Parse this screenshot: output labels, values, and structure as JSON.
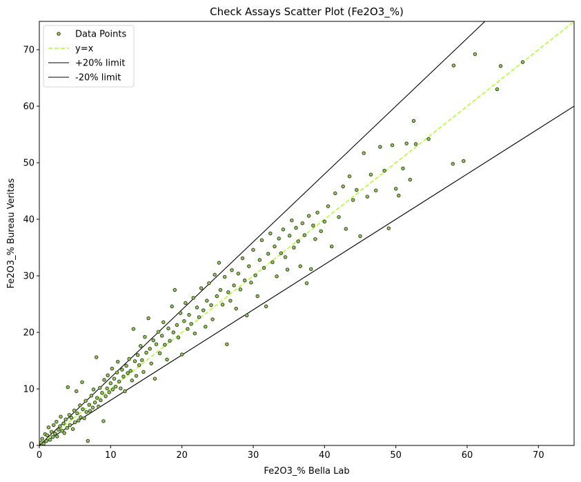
{
  "chart_data": {
    "type": "scatter",
    "title": "Check Assays Scatter Plot (Fe2O3_%)",
    "xlabel": "Fe2O3_% Bella Lab",
    "ylabel": "Fe2O3_% Bureau Veritas",
    "xlim": [
      0,
      75
    ],
    "ylim": [
      0,
      75
    ],
    "xticks": [
      0,
      10,
      20,
      30,
      40,
      50,
      60,
      70
    ],
    "yticks": [
      0,
      10,
      20,
      30,
      40,
      50,
      60,
      70
    ],
    "grid": false,
    "legend_position": "upper-left",
    "legend": [
      {
        "label": "Data Points",
        "kind": "marker"
      },
      {
        "label": "y=x",
        "kind": "dashed"
      },
      {
        "label": "+20% limit",
        "kind": "line"
      },
      {
        "label": "-20% limit",
        "kind": "line"
      }
    ],
    "colors": {
      "marker_fill": "#9acd60",
      "marker_edge": "#3a4a2a",
      "identity_line": "#adff2f",
      "limit_lines": "#000000"
    },
    "reference_lines": [
      {
        "name": "y=x",
        "slope": 1.0
      },
      {
        "name": "+20% limit",
        "slope": 1.2
      },
      {
        "name": "-20% limit",
        "slope": 0.8
      }
    ],
    "series": [
      {
        "name": "Data Points",
        "points": [
          [
            0.2,
            0.5
          ],
          [
            0.4,
            1.2
          ],
          [
            0.6,
            0.3
          ],
          [
            0.8,
            2.0
          ],
          [
            1.0,
            0.8
          ],
          [
            1.1,
            1.8
          ],
          [
            1.3,
            3.2
          ],
          [
            1.5,
            1.0
          ],
          [
            1.7,
            2.4
          ],
          [
            1.9,
            1.5
          ],
          [
            2.0,
            3.6
          ],
          [
            2.2,
            2.1
          ],
          [
            2.4,
            4.2
          ],
          [
            2.5,
            1.6
          ],
          [
            2.7,
            2.8
          ],
          [
            2.9,
            3.4
          ],
          [
            3.0,
            5.1
          ],
          [
            3.2,
            2.6
          ],
          [
            3.4,
            3.9
          ],
          [
            3.5,
            2.2
          ],
          [
            3.7,
            4.6
          ],
          [
            3.9,
            3.1
          ],
          [
            4.0,
            10.3
          ],
          [
            4.2,
            5.4
          ],
          [
            4.3,
            3.6
          ],
          [
            4.5,
            4.9
          ],
          [
            4.7,
            2.9
          ],
          [
            4.9,
            6.2
          ],
          [
            5.0,
            4.1
          ],
          [
            5.2,
            9.6
          ],
          [
            5.3,
            5.7
          ],
          [
            5.5,
            4.4
          ],
          [
            5.7,
            7.1
          ],
          [
            5.8,
            5.0
          ],
          [
            6.0,
            11.2
          ],
          [
            6.1,
            6.4
          ],
          [
            6.3,
            4.8
          ],
          [
            6.5,
            7.9
          ],
          [
            6.6,
            5.9
          ],
          [
            6.8,
            0.8
          ],
          [
            7.0,
            7.2
          ],
          [
            7.1,
            6.1
          ],
          [
            7.3,
            8.8
          ],
          [
            7.5,
            6.7
          ],
          [
            7.6,
            9.9
          ],
          [
            7.8,
            7.6
          ],
          [
            8.0,
            15.6
          ],
          [
            8.1,
            8.4
          ],
          [
            8.3,
            6.9
          ],
          [
            8.5,
            10.2
          ],
          [
            8.6,
            8.0
          ],
          [
            8.8,
            9.3
          ],
          [
            9.0,
            4.3
          ],
          [
            9.1,
            11.6
          ],
          [
            9.3,
            8.7
          ],
          [
            9.5,
            10.1
          ],
          [
            9.6,
            12.4
          ],
          [
            9.8,
            9.4
          ],
          [
            10.0,
            11.0
          ],
          [
            10.2,
            13.6
          ],
          [
            10.3,
            9.9
          ],
          [
            10.5,
            11.8
          ],
          [
            10.7,
            10.4
          ],
          [
            10.9,
            12.9
          ],
          [
            11.0,
            14.8
          ],
          [
            11.2,
            11.3
          ],
          [
            11.4,
            10.1
          ],
          [
            11.6,
            13.4
          ],
          [
            11.8,
            12.2
          ],
          [
            12.0,
            9.6
          ],
          [
            12.2,
            14.1
          ],
          [
            12.4,
            12.8
          ],
          [
            12.6,
            15.3
          ],
          [
            12.8,
            13.2
          ],
          [
            13.0,
            11.5
          ],
          [
            13.2,
            20.6
          ],
          [
            13.4,
            14.9
          ],
          [
            13.6,
            12.3
          ],
          [
            13.8,
            16.0
          ],
          [
            14.0,
            14.2
          ],
          [
            14.2,
            17.6
          ],
          [
            14.4,
            15.1
          ],
          [
            14.6,
            13.0
          ],
          [
            14.8,
            19.2
          ],
          [
            15.0,
            16.4
          ],
          [
            15.3,
            22.5
          ],
          [
            15.5,
            17.1
          ],
          [
            15.7,
            14.5
          ],
          [
            16.0,
            18.6
          ],
          [
            16.2,
            11.8
          ],
          [
            16.4,
            17.9
          ],
          [
            16.7,
            20.1
          ],
          [
            16.9,
            16.3
          ],
          [
            17.2,
            19.4
          ],
          [
            17.4,
            21.8
          ],
          [
            17.6,
            17.8
          ],
          [
            17.9,
            15.2
          ],
          [
            18.1,
            20.7
          ],
          [
            18.3,
            18.5
          ],
          [
            18.6,
            24.6
          ],
          [
            18.8,
            20.0
          ],
          [
            19.0,
            27.5
          ],
          [
            19.3,
            21.3
          ],
          [
            19.5,
            19.1
          ],
          [
            19.8,
            23.4
          ],
          [
            20.0,
            16.1
          ],
          [
            20.3,
            22.0
          ],
          [
            20.5,
            25.2
          ],
          [
            20.8,
            20.6
          ],
          [
            21.0,
            23.1
          ],
          [
            21.3,
            21.5
          ],
          [
            21.6,
            26.1
          ],
          [
            21.8,
            19.8
          ],
          [
            22.1,
            24.4
          ],
          [
            22.4,
            22.7
          ],
          [
            22.7,
            27.8
          ],
          [
            23.0,
            23.9
          ],
          [
            23.3,
            21.0
          ],
          [
            23.5,
            25.6
          ],
          [
            23.8,
            28.7
          ],
          [
            24.1,
            24.8
          ],
          [
            24.3,
            22.3
          ],
          [
            24.6,
            30.2
          ],
          [
            24.9,
            26.4
          ],
          [
            25.2,
            32.3
          ],
          [
            25.4,
            27.5
          ],
          [
            25.7,
            24.9
          ],
          [
            26.0,
            29.8
          ],
          [
            26.3,
            17.9
          ],
          [
            26.5,
            27.1
          ],
          [
            26.8,
            25.6
          ],
          [
            27.0,
            31.0
          ],
          [
            27.3,
            28.3
          ],
          [
            27.6,
            24.2
          ],
          [
            27.9,
            30.4
          ],
          [
            28.2,
            27.6
          ],
          [
            28.5,
            33.1
          ],
          [
            28.8,
            29.2
          ],
          [
            29.1,
            23.0
          ],
          [
            29.4,
            31.7
          ],
          [
            29.7,
            28.8
          ],
          [
            30.0,
            34.6
          ],
          [
            30.3,
            30.1
          ],
          [
            30.6,
            26.4
          ],
          [
            30.9,
            32.8
          ],
          [
            31.2,
            36.3
          ],
          [
            31.5,
            31.4
          ],
          [
            31.8,
            24.6
          ],
          [
            32.1,
            33.9
          ],
          [
            32.4,
            37.5
          ],
          [
            32.7,
            32.4
          ],
          [
            33.0,
            35.2
          ],
          [
            33.3,
            29.9
          ],
          [
            33.6,
            36.6
          ],
          [
            33.9,
            34.0
          ],
          [
            34.2,
            38.2
          ],
          [
            34.5,
            33.3
          ],
          [
            34.8,
            31.1
          ],
          [
            35.1,
            37.1
          ],
          [
            35.4,
            39.8
          ],
          [
            35.7,
            35.0
          ],
          [
            36.0,
            38.5
          ],
          [
            36.3,
            36.1
          ],
          [
            36.6,
            31.7
          ],
          [
            36.9,
            39.3
          ],
          [
            37.2,
            37.2
          ],
          [
            37.5,
            28.7
          ],
          [
            37.8,
            40.6
          ],
          [
            38.1,
            31.2
          ],
          [
            38.4,
            38.9
          ],
          [
            38.7,
            36.5
          ],
          [
            39.0,
            41.2
          ],
          [
            39.5,
            37.9
          ],
          [
            40.0,
            39.6
          ],
          [
            40.5,
            42.3
          ],
          [
            41.0,
            35.2
          ],
          [
            41.5,
            44.6
          ],
          [
            42.0,
            40.4
          ],
          [
            42.6,
            45.8
          ],
          [
            43.0,
            38.3
          ],
          [
            43.5,
            47.6
          ],
          [
            44.0,
            43.4
          ],
          [
            44.5,
            45.2
          ],
          [
            45.0,
            37.0
          ],
          [
            45.5,
            51.7
          ],
          [
            46.0,
            44.0
          ],
          [
            46.5,
            47.9
          ],
          [
            47.2,
            45.1
          ],
          [
            47.8,
            52.8
          ],
          [
            48.4,
            48.6
          ],
          [
            49.0,
            38.4
          ],
          [
            49.5,
            53.1
          ],
          [
            50.0,
            45.4
          ],
          [
            50.4,
            44.2
          ],
          [
            51.0,
            49.0
          ],
          [
            51.5,
            53.4
          ],
          [
            52.0,
            47.0
          ],
          [
            52.5,
            57.4
          ],
          [
            52.8,
            53.3
          ],
          [
            54.6,
            54.2
          ],
          [
            58.0,
            49.8
          ],
          [
            58.1,
            67.2
          ],
          [
            59.5,
            50.3
          ],
          [
            61.1,
            69.2
          ],
          [
            64.2,
            63.0
          ],
          [
            64.7,
            67.1
          ],
          [
            67.8,
            67.8
          ]
        ]
      }
    ]
  }
}
